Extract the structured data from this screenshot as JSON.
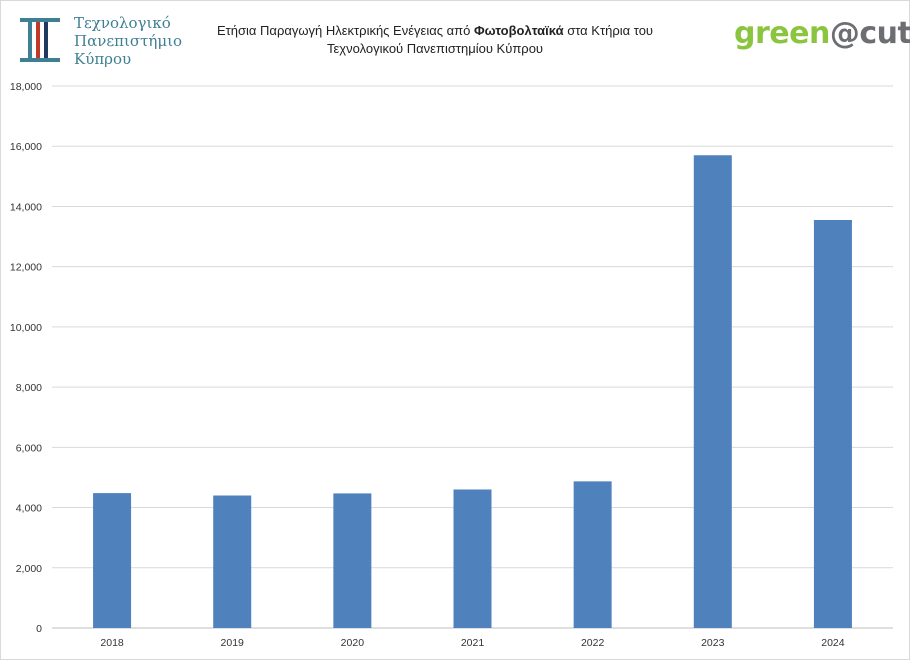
{
  "header": {
    "institution_lines": [
      "Τεχνολογικό",
      "Πανεπιστήμιο",
      "Κύπρου"
    ],
    "title_line1_pre": "Ετήσια Παραγωγή Ηλεκτρικής Ενέγειας από ",
    "title_line1_bold": "Φωτοβολταϊκά",
    "title_line1_post": " στα Κτήρια του",
    "title_line2": "Τεχνολογικού Πανεπιστημίου Κύπρου",
    "brand_part1": "green",
    "brand_part2": "@cut",
    "colors": {
      "institution": "#3f7f93",
      "brand_green": "#8bc53f",
      "brand_gray": "#6d6e71"
    }
  },
  "chart_data": {
    "type": "bar",
    "categories": [
      "2018",
      "2019",
      "2020",
      "2021",
      "2022",
      "2023",
      "2024"
    ],
    "values": [
      4480,
      4400,
      4470,
      4600,
      4870,
      15700,
      13550
    ],
    "ylim": [
      0,
      18000
    ],
    "yticks": [
      0,
      2000,
      4000,
      6000,
      8000,
      10000,
      12000,
      14000,
      16000,
      18000
    ],
    "ytick_labels": [
      "0",
      "2,000",
      "4,000",
      "6,000",
      "8,000",
      "10,000",
      "12,000",
      "14,000",
      "16,000",
      "18,000"
    ],
    "grid": true,
    "bar_color": "#4f81bd",
    "grid_color": "#d9d9d9"
  }
}
